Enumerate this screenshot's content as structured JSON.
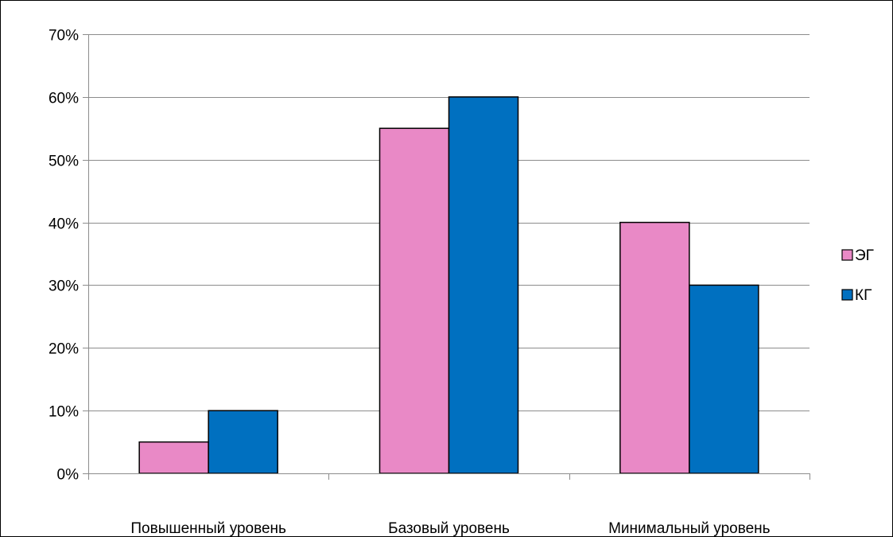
{
  "chart_data": {
    "type": "bar",
    "title": "",
    "xlabel": "",
    "ylabel": "",
    "categories": [
      "Повышенный уровень",
      "Базовый уровень",
      "Минимальный уровень"
    ],
    "series": [
      {
        "name": "ЭГ",
        "values": [
          5,
          55,
          40
        ],
        "color": "#e989c6"
      },
      {
        "name": "КГ",
        "values": [
          10,
          60,
          30
        ],
        "color": "#0070c0"
      }
    ],
    "ylim": [
      0,
      70
    ],
    "yticks": [
      0,
      10,
      20,
      30,
      40,
      50,
      60,
      70
    ],
    "ytick_labels": [
      "0%",
      "10%",
      "20%",
      "30%",
      "40%",
      "50%",
      "60%",
      "70%"
    ],
    "grid": true,
    "legend_position": "right"
  }
}
